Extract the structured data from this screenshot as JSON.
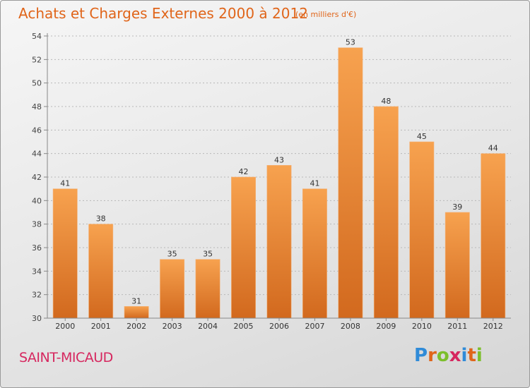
{
  "chart_data": {
    "type": "bar",
    "title": "Achats et Charges Externes 2000 à 2012",
    "subtitle": "(en milliers d'€)",
    "categories": [
      "2000",
      "2001",
      "2002",
      "2003",
      "2004",
      "2005",
      "2006",
      "2007",
      "2008",
      "2009",
      "2010",
      "2011",
      "2012"
    ],
    "values": [
      41,
      38,
      31,
      35,
      35,
      42,
      43,
      41,
      53,
      48,
      45,
      39,
      44
    ],
    "ylim": [
      30,
      54
    ],
    "yticks": [
      30,
      32,
      34,
      36,
      38,
      40,
      42,
      44,
      46,
      48,
      50,
      52,
      54
    ],
    "xlabel": "",
    "ylabel": "",
    "grid": "horizontal dotted",
    "bar_color_top": "#f7a24f",
    "bar_color_bottom": "#d2691e"
  },
  "footer": {
    "commune": "SAINT-MICAUD",
    "brand": "Proxiti"
  },
  "colors": {
    "title": "#e0651a",
    "commune": "#d6275f",
    "brand_letters": [
      "#2f8bd8",
      "#e0651a",
      "#7cbf2c",
      "#d6275f",
      "#2f8bd8",
      "#e0651a",
      "#7cbf2c"
    ]
  }
}
